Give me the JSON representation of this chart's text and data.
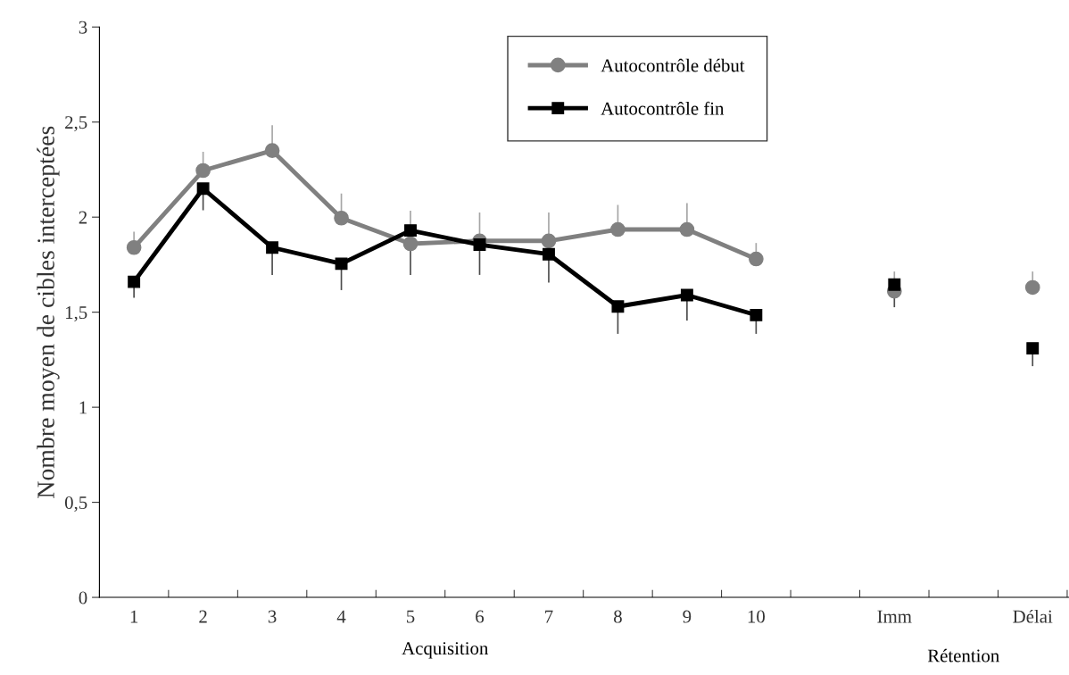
{
  "chart_data": {
    "type": "line",
    "ylabel": "Nombre moyen de cibles interceptées",
    "categories": [
      "1",
      "2",
      "3",
      "4",
      "5",
      "6",
      "7",
      "8",
      "9",
      "10",
      null,
      "Imm",
      null,
      "Délai"
    ],
    "series": [
      {
        "name": "Autocontrôle début",
        "color": "#808080",
        "marker": "circle",
        "values": [
          1.84,
          2.245,
          2.35,
          1.995,
          1.86,
          1.875,
          1.875,
          1.935,
          1.935,
          1.78,
          null,
          1.61,
          null,
          1.63
        ],
        "errors": [
          [
            1.84,
            1.92
          ],
          [
            2.245,
            2.34
          ],
          [
            2.35,
            2.48
          ],
          [
            1.995,
            2.12
          ],
          [
            1.86,
            2.03
          ],
          [
            1.875,
            2.02
          ],
          [
            1.875,
            2.02
          ],
          [
            1.935,
            2.06
          ],
          [
            1.935,
            2.07
          ],
          [
            1.78,
            1.86
          ],
          null,
          [
            1.61,
            1.71
          ],
          null,
          [
            1.63,
            1.71
          ]
        ]
      },
      {
        "name": "Autocontrôle fin",
        "color": "#000000",
        "marker": "square",
        "values": [
          1.66,
          2.15,
          1.84,
          1.755,
          1.93,
          1.855,
          1.805,
          1.53,
          1.59,
          1.485,
          null,
          1.645,
          null,
          1.31
        ],
        "errors": [
          [
            1.58,
            1.66
          ],
          [
            2.04,
            2.15
          ],
          [
            1.7,
            1.84
          ],
          [
            1.62,
            1.755
          ],
          [
            1.7,
            1.93
          ],
          [
            1.7,
            1.855
          ],
          [
            1.66,
            1.805
          ],
          [
            1.39,
            1.53
          ],
          [
            1.46,
            1.59
          ],
          [
            1.39,
            1.485
          ],
          null,
          [
            1.53,
            1.645
          ],
          null,
          [
            1.22,
            1.31
          ]
        ]
      }
    ],
    "ylim": [
      0,
      3
    ],
    "yticks": [
      0,
      {
        "value": 0.5,
        "label": "0,5"
      },
      1,
      {
        "value": 1.5,
        "label": "1,5"
      },
      2,
      {
        "value": 2.5,
        "label": "2,5"
      },
      3
    ],
    "annotations": [
      "Acquisition",
      "Rétention"
    ],
    "legend": "top",
    "grid": false,
    "line_style": "solid"
  }
}
